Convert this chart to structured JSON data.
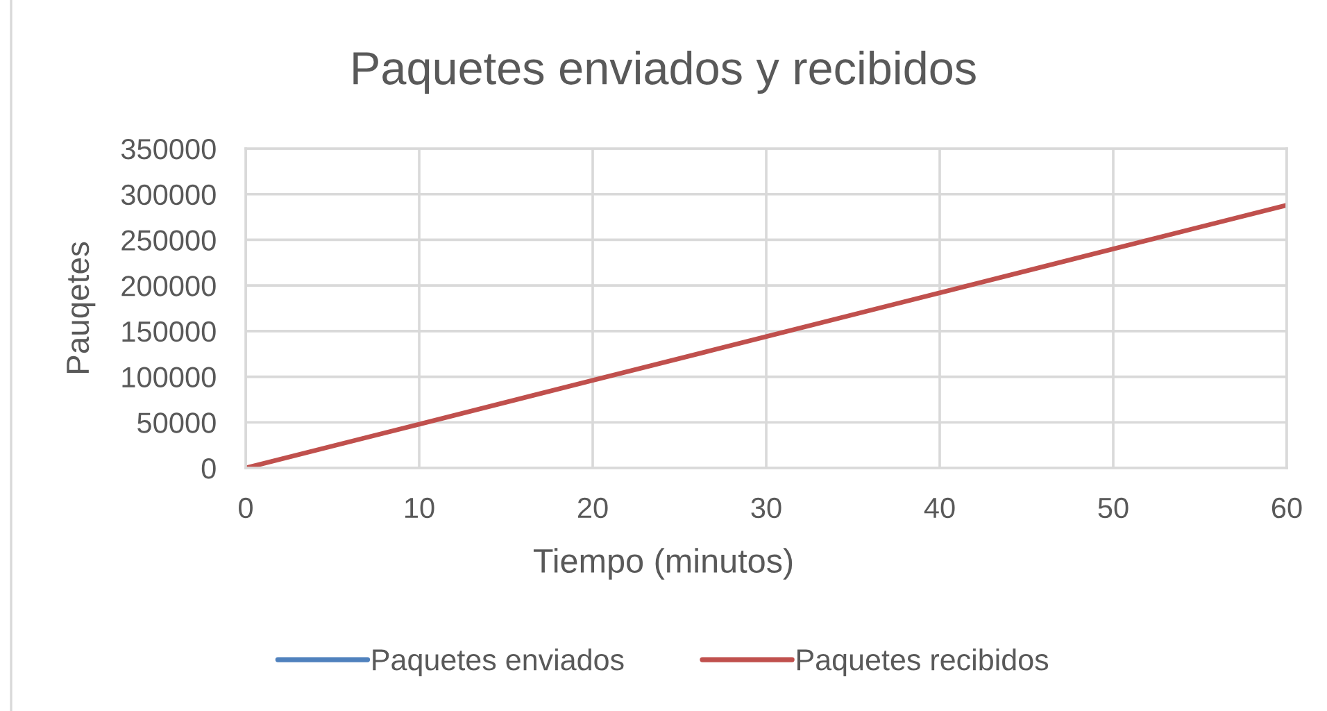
{
  "chart_data": {
    "type": "line",
    "title": "Paquetes enviados y recibidos",
    "xlabel": "Tiempo (minutos)",
    "ylabel": "Pauqetes",
    "x": [
      0,
      10,
      20,
      30,
      40,
      50,
      60
    ],
    "series": [
      {
        "name": "Paquetes enviados",
        "color": "#4f81bd",
        "values": [
          null,
          null,
          null,
          null,
          null,
          null,
          null
        ]
      },
      {
        "name": "Paquetes recibidos",
        "color": "#c0504d",
        "values": [
          0,
          48000,
          96000,
          144000,
          192000,
          240000,
          288000
        ]
      }
    ],
    "xlim": [
      0,
      60
    ],
    "xticks": [
      0,
      10,
      20,
      30,
      40,
      50,
      60
    ],
    "ylim": [
      0,
      350000
    ],
    "yticks": [
      0,
      50000,
      100000,
      150000,
      200000,
      250000,
      300000,
      350000
    ],
    "grid": true,
    "legend": "bottom",
    "marker": "none",
    "line_style": "solid"
  }
}
